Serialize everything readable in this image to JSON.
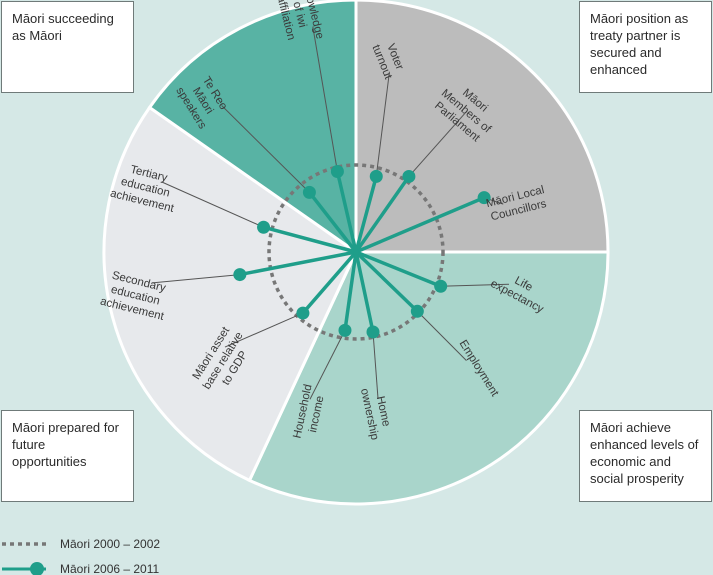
{
  "corners": {
    "top_left": "Māori succeeding as Māori",
    "top_right": "Māori position as treaty partner is secured and enhanced",
    "bottom_left": "Māori prepared for future opportunities",
    "bottom_right": "Māori achieve enhanced levels of economic and social prosperity"
  },
  "colors": {
    "background": "#d5e8e6",
    "quadrant_top_left": "#58b3a4",
    "quadrant_top_right": "#bcbcbc",
    "quadrant_bottom_right": "#a9d5cb",
    "quadrant_bottom_left": "#e7e9ec",
    "series_2006": "#1f9e8a",
    "series_2000": "#777777"
  },
  "chart_data": {
    "type": "radar",
    "title": "",
    "baseline_value": 1.0,
    "indicators": [
      {
        "label": "Voter turnout",
        "angle": 15,
        "value": 0.9
      },
      {
        "label": "Māori Members of Parliament",
        "angle": 35,
        "value": 1.06
      },
      {
        "label": "Māori Local Councillors",
        "angle": 67,
        "value": 1.6
      },
      {
        "label": "Life expectancy",
        "angle": 112,
        "value": 1.05
      },
      {
        "label": "Employment",
        "angle": 134,
        "value": 0.98
      },
      {
        "label": "Home ownership",
        "angle": 168,
        "value": 0.94
      },
      {
        "label": "Household income",
        "angle": 188,
        "value": 0.91
      },
      {
        "label": "Māori asset base relative to GDP",
        "angle": 221,
        "value": 0.93
      },
      {
        "label": "Secondary education achievement",
        "angle": 259,
        "value": 1.36
      },
      {
        "label": "Tertiary education achievement",
        "angle": 285,
        "value": 1.1
      },
      {
        "label": "Te Reo Māori speakers",
        "angle": 322,
        "value": 0.87
      },
      {
        "label": "Knowledge of iwi affiliation",
        "angle": 347,
        "value": 0.95
      }
    ],
    "series": [
      {
        "name": "Māori 2000 – 2002"
      },
      {
        "name": "Māori 2006 – 2011"
      }
    ]
  }
}
